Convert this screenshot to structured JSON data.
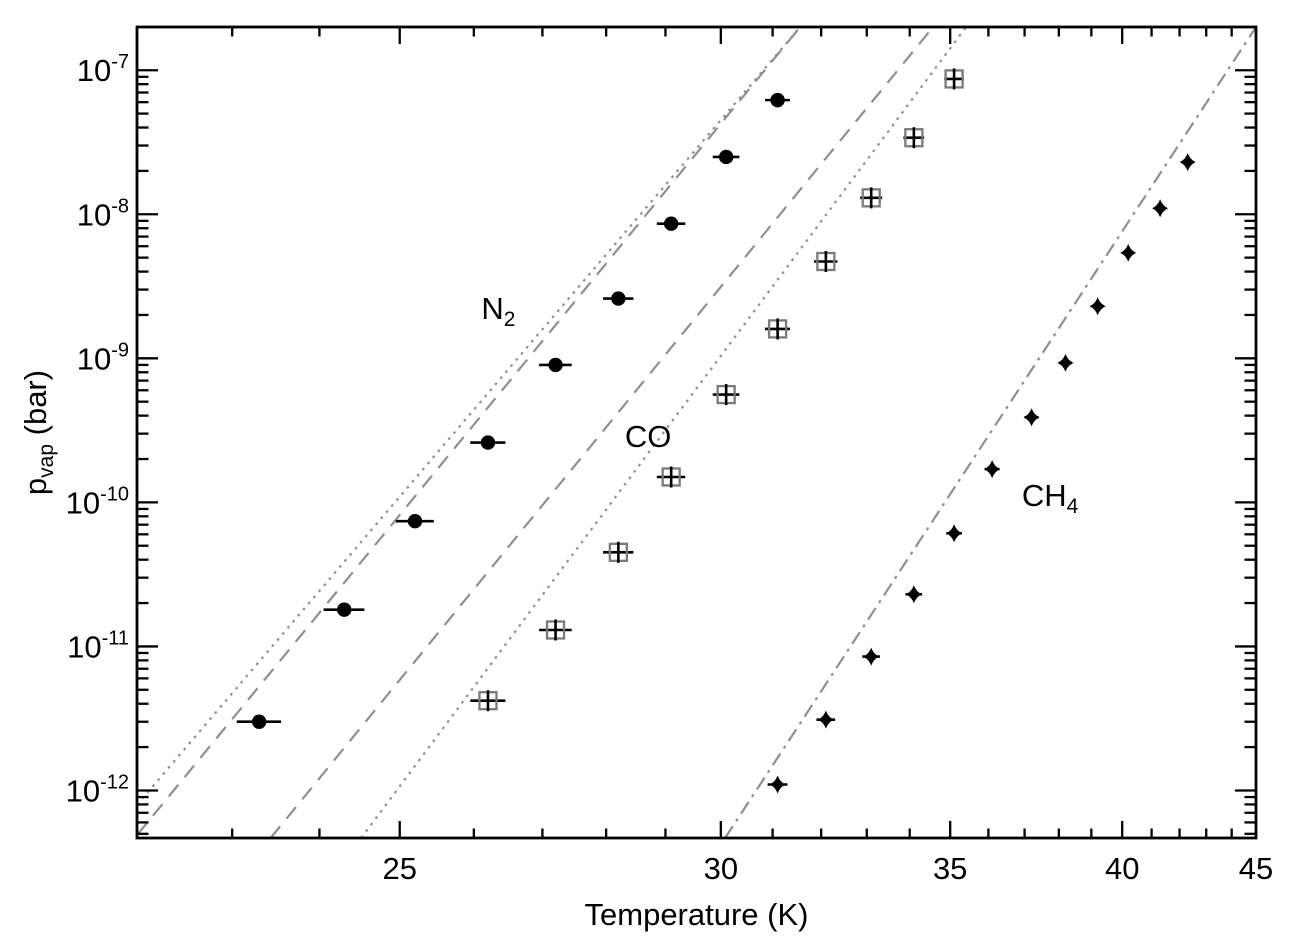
{
  "figure": {
    "background": "#ffffff",
    "frame_color": "#000000",
    "line_gray": "#8f8f8f",
    "square_gray": "#7a7a7a",
    "marker_black": "#000000"
  },
  "chart_data": {
    "type": "scatter",
    "title": "",
    "xlabel": "Temperature (K)",
    "ylabel_parts": {
      "main": "p",
      "sub": "vap",
      "rest": " (bar)"
    },
    "x_axis": {
      "scale": "linear-in-inverse-T",
      "T_min": 22.0,
      "T_max": 45.0,
      "major_ticks": [
        25,
        30,
        35,
        40,
        45
      ],
      "minor_tick_step_K": 1,
      "grid": false
    },
    "y_axis": {
      "scale": "log10",
      "exp_top": -6.7,
      "exp_bottom": -12.33,
      "major_tick_exponents": [
        -7,
        -8,
        -9,
        -10,
        -11,
        -12
      ],
      "tick_label_base": "10",
      "grid": false
    },
    "series": [
      {
        "name": "N2",
        "label_main": "N",
        "label_sub": "2",
        "marker": "filled-circle",
        "T_err_K": 0.25,
        "points": [
          [
            23.3,
            3e-12
          ],
          [
            24.3,
            1.8e-11
          ],
          [
            25.2,
            7.4e-11
          ],
          [
            26.2,
            2.6e-10
          ],
          [
            27.2,
            9e-10
          ],
          [
            28.2,
            2.6e-09
          ],
          [
            29.1,
            8.6e-09
          ],
          [
            30.1,
            2.5e-08
          ],
          [
            31.1,
            6.2e-08
          ]
        ]
      },
      {
        "name": "CO",
        "label_main": "CO",
        "label_sub": "",
        "marker": "open-square-plus",
        "T_err_K": 0.25,
        "points": [
          [
            26.2,
            4.2e-12
          ],
          [
            27.2,
            1.3e-11
          ],
          [
            28.2,
            4.5e-11
          ],
          [
            29.1,
            1.5e-10
          ],
          [
            30.1,
            5.6e-10
          ],
          [
            31.1,
            1.6e-09
          ],
          [
            32.1,
            4.7e-09
          ],
          [
            33.1,
            1.3e-08
          ],
          [
            34.1,
            3.4e-08
          ],
          [
            35.1,
            8.7e-08
          ]
        ]
      },
      {
        "name": "CH4",
        "label_main": "CH",
        "label_sub": "4",
        "marker": "filled-diamond",
        "T_err_K": 0.2,
        "points": [
          [
            31.1,
            1.1e-12
          ],
          [
            32.1,
            3.1e-12
          ],
          [
            33.1,
            8.5e-12
          ],
          [
            34.1,
            2.3e-11
          ],
          [
            35.1,
            6.1e-11
          ],
          [
            36.1,
            1.7e-10
          ],
          [
            37.2,
            3.9e-10
          ],
          [
            38.2,
            9.3e-10
          ],
          [
            39.2,
            2.3e-09
          ],
          [
            40.2,
            5.4e-09
          ],
          [
            41.3,
            1.1e-08
          ],
          [
            42.3,
            2.3e-08
          ]
        ]
      }
    ],
    "fit_lines": [
      {
        "id": "line-dotted-left",
        "style": "dotted",
        "from_T": 22.0,
        "from_logp": -12.1,
        "to_T": 31.56,
        "to_logp": -6.7
      },
      {
        "id": "line-dashed-left",
        "style": "dashed",
        "from_T": 22.0,
        "from_logp": -12.31,
        "to_T": 31.56,
        "to_logp": -6.7
      },
      {
        "id": "line-dashed-mid",
        "style": "dashed",
        "from_T": 23.43,
        "from_logp": -12.33,
        "to_T": 34.57,
        "to_logp": -6.7
      },
      {
        "id": "line-dotted-mid",
        "style": "dotted",
        "from_T": 24.51,
        "from_logp": -12.33,
        "to_T": 35.41,
        "to_logp": -6.7
      },
      {
        "id": "line-dashdot-right",
        "style": "dashdot",
        "from_T": 30.08,
        "from_logp": -12.33,
        "to_T": 45.0,
        "to_logp": -6.7
      }
    ],
    "annotations": [
      {
        "main": "N",
        "sub": "2",
        "T": 26.35,
        "logp": -8.65
      },
      {
        "main": "CO",
        "sub": "",
        "T": 28.7,
        "logp": -9.54
      },
      {
        "main": "CH",
        "sub": "4",
        "T": 37.74,
        "logp": -9.95
      }
    ]
  }
}
